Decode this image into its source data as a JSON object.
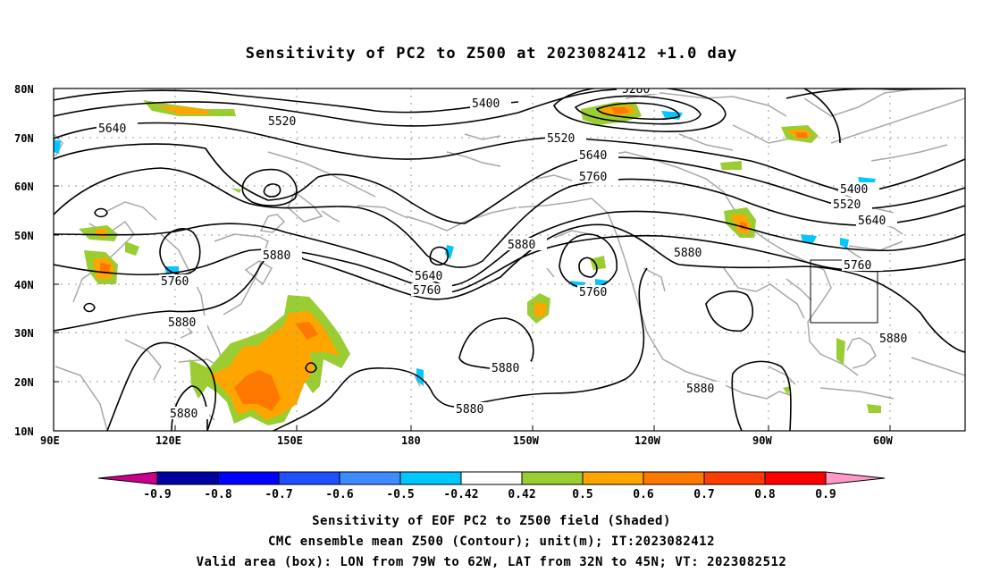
{
  "title": "Sensitivity of PC2 to Z500 at 2023082412 +1.0 day",
  "map": {
    "lat_labels": [
      "80N",
      "70N",
      "60N",
      "50N",
      "40N",
      "30N",
      "20N",
      "10N"
    ],
    "lon_labels": [
      "90E",
      "120E",
      "150E",
      "180",
      "150W",
      "120W",
      "90W",
      "60W"
    ],
    "lat_range": [
      10,
      80
    ],
    "lon_range_east": [
      90,
      315
    ],
    "contour_labels": [
      "5280",
      "5400",
      "5400",
      "5520",
      "5520",
      "5520",
      "5640",
      "5640",
      "5640",
      "5640",
      "5760",
      "5760",
      "5760",
      "5760",
      "5760",
      "5880",
      "5880",
      "5880",
      "5880",
      "5880",
      "5880",
      "5880",
      "5880"
    ],
    "valid_box": {
      "lon_west": 79,
      "lon_east": 62,
      "lat_south": 32,
      "lat_north": 45
    }
  },
  "colorbar": {
    "labels": [
      "-0.9",
      "-0.8",
      "-0.7",
      "-0.6",
      "-0.5",
      "-0.42",
      "0.42",
      "0.5",
      "0.6",
      "0.7",
      "0.8",
      "0.9"
    ],
    "colors": [
      "#c8008c",
      "#0000a0",
      "#0000ff",
      "#1e50ff",
      "#3c8cff",
      "#00c8ff",
      "#ffffff",
      "#9acd32",
      "#ffa500",
      "#ff7800",
      "#ff3c00",
      "#ff0000",
      "#ff9ac8"
    ]
  },
  "captions": {
    "line1": "Sensitivity of EOF PC2 to Z500 field (Shaded)",
    "line2": "CMC ensemble mean Z500 (Contour); unit(m); IT:2023082412",
    "line3": "Valid area (box): LON from 79W to 62W, LAT from 32N to 45N; VT: 2023082512"
  }
}
